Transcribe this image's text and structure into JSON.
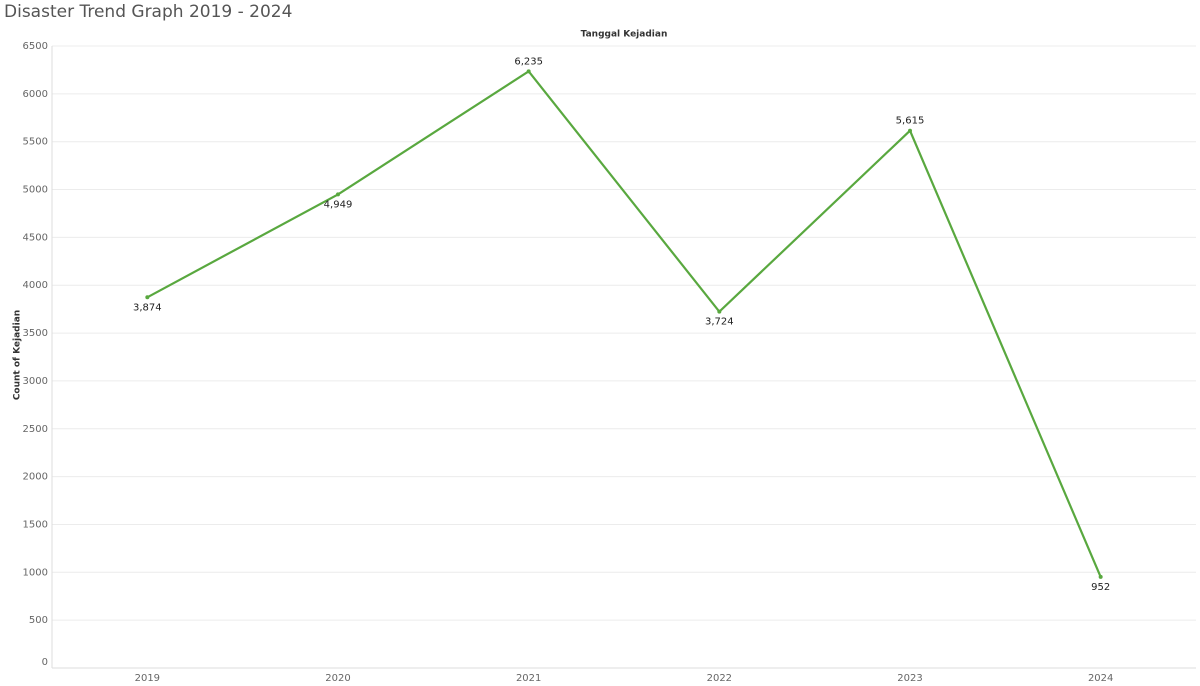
{
  "chart_data": {
    "type": "line",
    "title": "Disaster Trend Graph 2019 - 2024",
    "x_axis_title": "Tanggal Kejadian",
    "y_axis_title": "Count of Kejadian",
    "categories": [
      "2019",
      "2020",
      "2021",
      "2022",
      "2023",
      "2024"
    ],
    "series": [
      {
        "name": "Count of Kejadian",
        "color": "#59a83f",
        "values": [
          3874,
          4949,
          6235,
          3724,
          5615,
          952
        ],
        "value_labels": [
          "3,874",
          "4,949",
          "6,235",
          "3,724",
          "5,615",
          "952"
        ]
      }
    ],
    "ylim": [
      0,
      6500
    ],
    "yticks": [
      0,
      500,
      1000,
      1500,
      2000,
      2500,
      3000,
      3500,
      4000,
      4500,
      5000,
      5500,
      6000,
      6500
    ],
    "grid": true
  }
}
